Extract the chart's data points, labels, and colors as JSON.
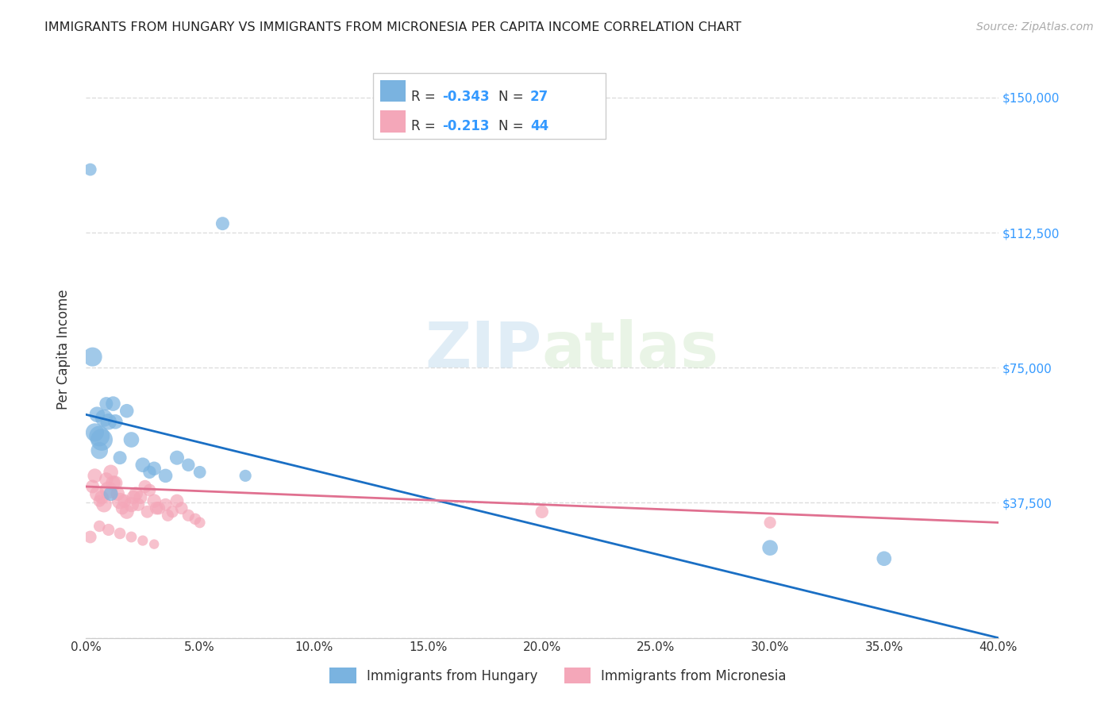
{
  "title": "IMMIGRANTS FROM HUNGARY VS IMMIGRANTS FROM MICRONESIA PER CAPITA INCOME CORRELATION CHART",
  "source": "Source: ZipAtlas.com",
  "xlabel_ticks": [
    "0.0%",
    "5.0%",
    "10.0%",
    "15.0%",
    "20.0%",
    "25.0%",
    "30.0%",
    "35.0%",
    "40.0%"
  ],
  "xlabel_vals": [
    0.0,
    5.0,
    10.0,
    15.0,
    20.0,
    25.0,
    30.0,
    35.0,
    40.0
  ],
  "ylabel": "Per Capita Income",
  "ytick_vals": [
    0,
    37500,
    75000,
    112500,
    150000
  ],
  "ytick_labels": [
    "",
    "$37,500",
    "$75,000",
    "$112,500",
    "$150,000"
  ],
  "xlim": [
    0,
    40
  ],
  "ylim": [
    0,
    160000
  ],
  "hungary_color": "#7ab3e0",
  "micronesia_color": "#f4a7b9",
  "hungary_line_color": "#1a6fc4",
  "micronesia_line_color": "#e07090",
  "hungary_R": "-0.343",
  "hungary_N": "27",
  "micronesia_R": "-0.213",
  "micronesia_N": "44",
  "legend_label_hungary": "Immigrants from Hungary",
  "legend_label_micronesia": "Immigrants from Micronesia",
  "watermark_zip": "ZIP",
  "watermark_atlas": "atlas",
  "background_color": "#ffffff",
  "grid_color": "#dddddd",
  "hungary_x": [
    0.5,
    1.2,
    1.8,
    0.3,
    0.8,
    1.0,
    0.4,
    0.6,
    0.7,
    1.5,
    2.5,
    3.0,
    4.0,
    4.5,
    5.0,
    7.0,
    2.0,
    1.3,
    0.9,
    1.1,
    3.5,
    2.8,
    0.2,
    6.0,
    30.0,
    35.0,
    0.6
  ],
  "hungary_y": [
    62000,
    65000,
    63000,
    78000,
    61000,
    60000,
    57000,
    56000,
    55000,
    50000,
    48000,
    47000,
    50000,
    48000,
    46000,
    45000,
    55000,
    60000,
    65000,
    40000,
    45000,
    46000,
    130000,
    115000,
    25000,
    22000,
    52000
  ],
  "micronesia_x": [
    0.3,
    0.5,
    0.6,
    0.7,
    0.8,
    1.0,
    1.2,
    1.4,
    1.5,
    1.6,
    1.8,
    2.0,
    2.2,
    2.4,
    2.6,
    2.8,
    3.0,
    3.2,
    3.5,
    3.8,
    4.0,
    4.2,
    4.5,
    4.8,
    5.0,
    0.4,
    0.9,
    1.1,
    1.3,
    1.7,
    2.1,
    2.3,
    2.7,
    3.1,
    3.6,
    20.0,
    30.0,
    0.2,
    0.6,
    1.0,
    1.5,
    2.0,
    2.5,
    3.0
  ],
  "micronesia_y": [
    42000,
    40000,
    38000,
    39000,
    37000,
    41000,
    43000,
    40000,
    38000,
    36000,
    35000,
    37000,
    40000,
    39000,
    42000,
    41000,
    38000,
    36000,
    37000,
    35000,
    38000,
    36000,
    34000,
    33000,
    32000,
    45000,
    44000,
    46000,
    43000,
    38000,
    39000,
    37000,
    35000,
    36000,
    34000,
    35000,
    32000,
    28000,
    31000,
    30000,
    29000,
    28000,
    27000,
    26000
  ],
  "hungary_bubble_sizes": [
    200,
    180,
    160,
    300,
    250,
    220,
    280,
    350,
    400,
    150,
    180,
    160,
    170,
    140,
    130,
    120,
    200,
    180,
    150,
    170,
    160,
    140,
    130,
    150,
    200,
    180,
    240
  ],
  "micronesia_bubble_sizes": [
    150,
    180,
    120,
    160,
    200,
    250,
    180,
    160,
    220,
    140,
    170,
    190,
    160,
    150,
    140,
    130,
    160,
    140,
    130,
    120,
    150,
    130,
    120,
    110,
    100,
    170,
    160,
    180,
    170,
    150,
    160,
    140,
    130,
    140,
    120,
    140,
    120,
    130,
    110,
    120,
    110,
    100,
    90,
    80
  ]
}
